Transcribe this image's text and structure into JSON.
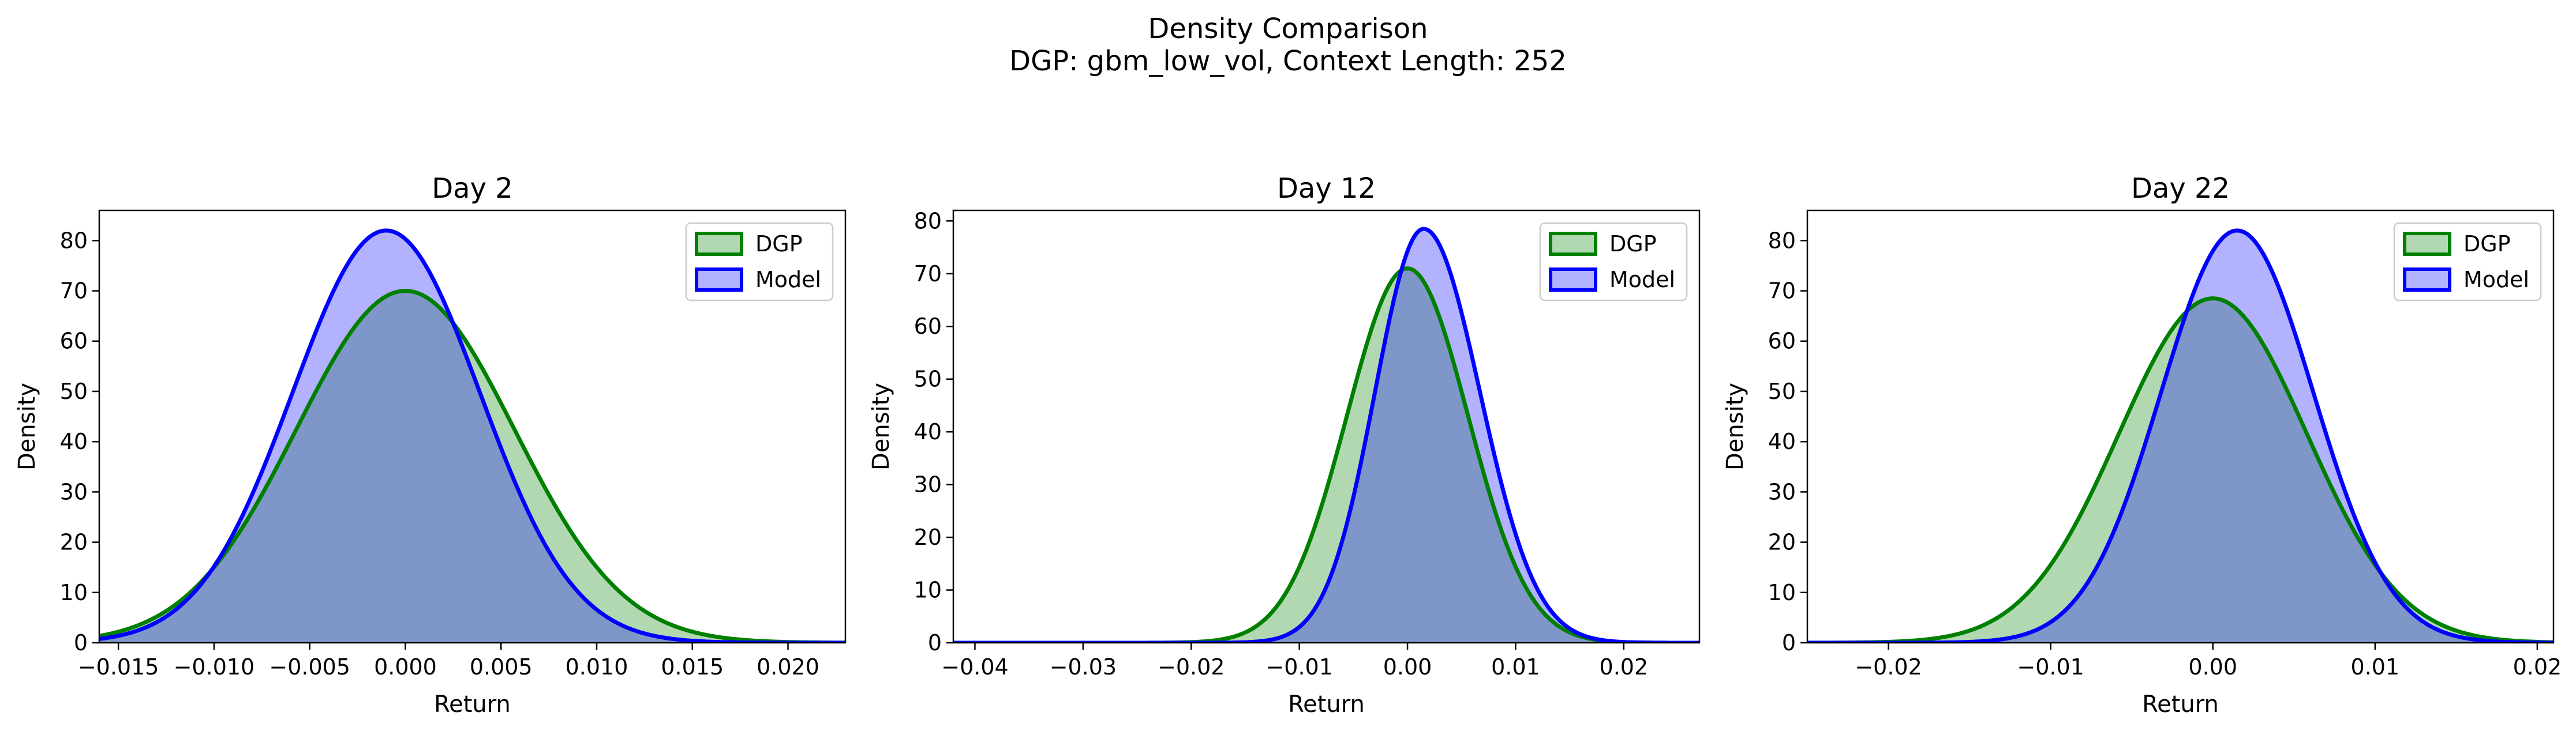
{
  "figure": {
    "title_line1": "Density Comparison",
    "title_line2": "DGP: gbm_low_vol, Context Length: 252"
  },
  "legend": {
    "dgp_label": "DGP",
    "model_label": "Model"
  },
  "colors": {
    "dgp_line": "#008000",
    "dgp_fill": "#b2d8b2",
    "model_line": "#0000ff",
    "model_fill": "#b2b2ff",
    "overlap_fill": "#7f97c8"
  },
  "chart_data": [
    {
      "type": "area",
      "title": "Day 2",
      "xlabel": "Return",
      "ylabel": "Density",
      "xlim": [
        -0.016,
        0.023
      ],
      "ylim": [
        0,
        86
      ],
      "xticks": [
        -0.015,
        -0.01,
        -0.005,
        0.0,
        0.005,
        0.01,
        0.015,
        0.02
      ],
      "xtick_labels": [
        "−0.015",
        "−0.010",
        "−0.005",
        "0.000",
        "0.005",
        "0.010",
        "0.015",
        "0.020"
      ],
      "yticks": [
        0,
        10,
        20,
        30,
        40,
        50,
        60,
        70,
        80
      ],
      "ytick_labels": [
        "0",
        "10",
        "20",
        "30",
        "40",
        "50",
        "60",
        "70",
        "80"
      ],
      "legend_position": "upper right",
      "grid": false,
      "series": [
        {
          "name": "DGP",
          "distribution": "gaussian",
          "peak_x": 0.0,
          "peak_y": 70,
          "left_spread": 0.0057,
          "right_spread": 0.0057
        },
        {
          "name": "Model",
          "distribution": "gaussian",
          "peak_x": -0.001,
          "peak_y": 82,
          "left_spread": 0.0049,
          "right_spread": 0.0049
        }
      ]
    },
    {
      "type": "area",
      "title": "Day 12",
      "xlabel": "Return",
      "ylabel": "Density",
      "xlim": [
        -0.042,
        0.027
      ],
      "ylim": [
        0,
        82
      ],
      "xticks": [
        -0.04,
        -0.03,
        -0.02,
        -0.01,
        0.0,
        0.01,
        0.02
      ],
      "xtick_labels": [
        "−0.04",
        "−0.03",
        "−0.02",
        "−0.01",
        "0.00",
        "0.01",
        "0.02"
      ],
      "yticks": [
        0,
        10,
        20,
        30,
        40,
        50,
        60,
        70,
        80
      ],
      "ytick_labels": [
        "0",
        "10",
        "20",
        "30",
        "40",
        "50",
        "60",
        "70",
        "80"
      ],
      "legend_position": "upper right",
      "grid": false,
      "series": [
        {
          "name": "DGP",
          "distribution": "gaussian",
          "peak_x": 0.0,
          "peak_y": 71,
          "left_spread": 0.0056,
          "right_spread": 0.0056
        },
        {
          "name": "Model",
          "distribution": "gaussian",
          "peak_x": 0.0015,
          "peak_y": 78.5,
          "left_spread": 0.0045,
          "right_spread": 0.0052
        }
      ]
    },
    {
      "type": "area",
      "title": "Day 22",
      "xlabel": "Return",
      "ylabel": "Density",
      "xlim": [
        -0.025,
        0.021
      ],
      "ylim": [
        0,
        86
      ],
      "xticks": [
        -0.02,
        -0.01,
        0.0,
        0.01,
        0.02
      ],
      "xtick_labels": [
        "−0.02",
        "−0.01",
        "0.00",
        "0.01",
        "0.02"
      ],
      "yticks": [
        0,
        10,
        20,
        30,
        40,
        50,
        60,
        70,
        80
      ],
      "ytick_labels": [
        "0",
        "10",
        "20",
        "30",
        "40",
        "50",
        "60",
        "70",
        "80"
      ],
      "legend_position": "upper right",
      "grid": false,
      "series": [
        {
          "name": "DGP",
          "distribution": "gaussian",
          "peak_x": 0.0,
          "peak_y": 68.5,
          "left_spread": 0.0058,
          "right_spread": 0.0058
        },
        {
          "name": "Model",
          "distribution": "gaussian",
          "peak_x": 0.0015,
          "peak_y": 82,
          "left_spread": 0.0047,
          "right_spread": 0.0047
        }
      ]
    }
  ]
}
